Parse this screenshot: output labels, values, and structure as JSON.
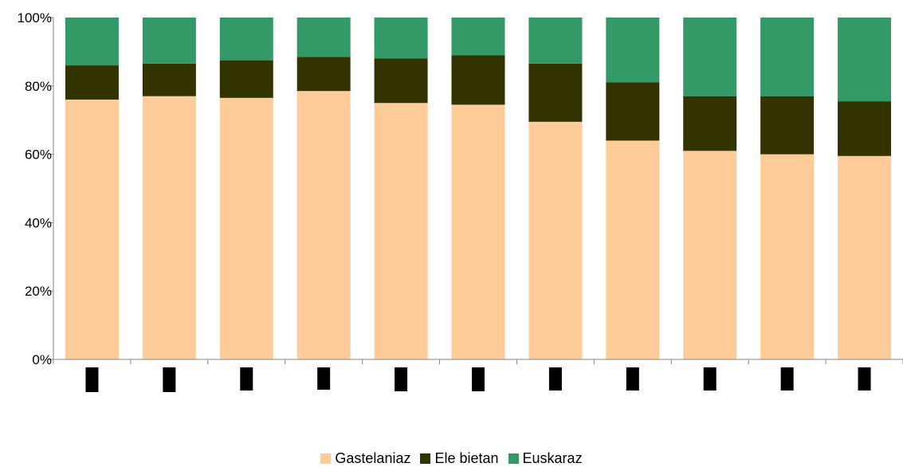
{
  "chart_data": {
    "type": "bar",
    "stacked": true,
    "percent_stacked": true,
    "categories": [
      "",
      "",
      "",
      "",
      "",
      "",
      "",
      "",
      "",
      "",
      ""
    ],
    "series": [
      {
        "name": "Gastelaniaz",
        "color": "#FFCC99",
        "values": [
          76,
          77,
          76.5,
          78.5,
          75,
          74.5,
          69.5,
          64,
          61,
          60,
          59.5
        ]
      },
      {
        "name": "Ele bietan",
        "color": "#333300",
        "values": [
          10,
          9.5,
          11,
          10,
          13,
          14.5,
          17,
          17,
          16,
          17,
          16
        ]
      },
      {
        "name": "Euskaraz",
        "color": "#339966",
        "values": [
          14,
          13.5,
          12.5,
          11.5,
          12,
          11,
          13.5,
          19,
          23,
          23,
          24.5
        ]
      }
    ],
    "y_ticks": [
      "0%",
      "20%",
      "40%",
      "60%",
      "80%",
      "100%"
    ],
    "ylim": [
      0,
      100
    ],
    "grid": false,
    "legend_position": "bottom",
    "title": "",
    "xlabel": "",
    "ylabel": ""
  }
}
